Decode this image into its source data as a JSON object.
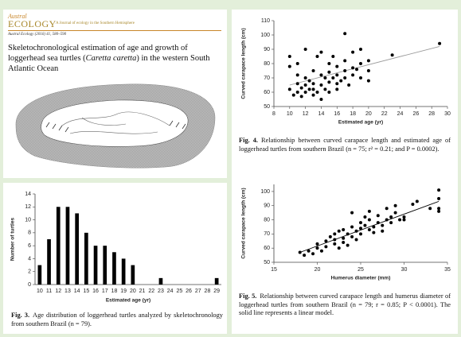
{
  "header": {
    "journal_italic": "Austral",
    "journal_name": "ECOLOGY",
    "tagline": "A Journal of ecology in the Southern Hemisphere",
    "citation": "Austral Ecology (2016) 41, 580–590"
  },
  "paper": {
    "title": [
      "Skeletochronological estimation of age and growth of loggerhead sea turtles (",
      "Caretta caretta",
      ") in the western South Atlantic Ocean"
    ]
  },
  "chart_data": [
    {
      "type": "bar",
      "label": "Fig. 3.",
      "caption": "Age distribution of loggerhead turtles analyzed by skeletochronology from southern Brazil (n = 79).",
      "x_label": "Estimated age (yr)",
      "y_label": "Number of turtles",
      "color": "#000000",
      "categories": [
        "10",
        "11",
        "12",
        "13",
        "14",
        "15",
        "16",
        "17",
        "18",
        "19",
        "20",
        "21",
        "22",
        "23",
        "24",
        "25",
        "26",
        "27",
        "28",
        "29"
      ],
      "values": [
        3,
        7,
        12,
        12,
        11,
        8,
        6,
        6,
        5,
        4,
        3,
        0,
        0,
        1,
        0,
        0,
        0,
        0,
        0,
        1
      ],
      "ylim": [
        0,
        14
      ],
      "yticks": [
        0,
        2,
        4,
        6,
        8,
        10,
        12,
        14
      ]
    },
    {
      "type": "scatter",
      "label": "Fig. 4.",
      "caption": "Relationship between curved carapace length and estimated age of loggerhead turtles from southern Brazil (n = 75; r² = 0.21; and P = 0.0002).",
      "x_label": "Estimated age (yr)",
      "y_label": "Curved carapace length (cm)",
      "color": "#000000",
      "x": [
        10,
        10,
        10,
        10.5,
        11,
        11,
        11,
        11,
        11.5,
        11.5,
        12,
        12,
        12,
        12,
        12.5,
        12.5,
        13,
        13,
        13,
        13,
        13.5,
        13.5,
        14,
        14,
        14,
        14,
        14.5,
        14.5,
        15,
        15,
        15,
        15,
        15.5,
        15.5,
        16,
        16,
        16,
        16,
        16.5,
        17,
        17,
        17,
        17,
        17.5,
        18,
        18,
        18,
        18.5,
        19,
        19,
        19,
        20,
        20,
        20,
        23,
        29
      ],
      "values": [
        85,
        78,
        62,
        58,
        60,
        66,
        72,
        80,
        63,
        57,
        90,
        70,
        65,
        60,
        62,
        68,
        58,
        75,
        62,
        66,
        60,
        85,
        88,
        72,
        65,
        55,
        70,
        62,
        80,
        67,
        74,
        60,
        85,
        70,
        66,
        78,
        72,
        62,
        68,
        101,
        82,
        75,
        70,
        65,
        77,
        88,
        72,
        76,
        70,
        80,
        90,
        82,
        68,
        75,
        86,
        94
      ],
      "fit": {
        "x": [
          10,
          29
        ],
        "y": [
          65,
          92
        ]
      },
      "fit_color": "#9a9a9a",
      "xlim": [
        8,
        30
      ],
      "xticks": [
        8,
        10,
        12,
        14,
        16,
        18,
        20,
        22,
        24,
        26,
        28,
        30
      ],
      "ylim": [
        50,
        110
      ],
      "yticks": [
        50,
        60,
        70,
        80,
        90,
        100,
        110
      ]
    },
    {
      "type": "scatter",
      "label": "Fig. 5.",
      "caption": "Relationship between curved carapace length and humerus diameter of loggerhead turtles from southern Brazil (n = 79; r = 0.85; P < 0.0001). The solid line represents a linear model.",
      "x_label": "Humerus diameter (mm)",
      "y_label": "Curved carapace length (cm)",
      "color": "#000000",
      "x": [
        18,
        18.5,
        19,
        19.5,
        20,
        20,
        20.5,
        21,
        21,
        21.5,
        22,
        22,
        22,
        22.5,
        22.5,
        23,
        23,
        23,
        23.5,
        23.5,
        24,
        24,
        24,
        24.5,
        24.5,
        25,
        25,
        25,
        25.5,
        25.5,
        26,
        26,
        26,
        26.5,
        26.5,
        27,
        27,
        27.5,
        27.5,
        28,
        28,
        28.5,
        28.5,
        29,
        29,
        29.5,
        30,
        30,
        31,
        31.5,
        34,
        34,
        34,
        34,
        33
      ],
      "values": [
        57,
        55,
        58,
        56,
        60,
        63,
        58,
        65,
        61,
        68,
        66,
        63,
        70,
        60,
        72,
        67,
        64,
        73,
        70,
        62,
        68,
        75,
        85,
        72,
        66,
        78,
        70,
        74,
        76,
        82,
        73,
        80,
        86,
        75,
        71,
        78,
        83,
        76,
        72,
        80,
        88,
        82,
        78,
        85,
        90,
        80,
        82,
        80,
        91,
        93,
        101,
        95,
        88,
        86,
        88
      ],
      "fit": {
        "x": [
          18,
          34
        ],
        "y": [
          57,
          93
        ]
      },
      "fit_color": "#000000",
      "xlim": [
        15,
        35
      ],
      "xticks": [
        15,
        20,
        25,
        30,
        35
      ],
      "ylim": [
        50,
        105
      ],
      "yticks": [
        50,
        60,
        70,
        80,
        90,
        100
      ]
    }
  ]
}
